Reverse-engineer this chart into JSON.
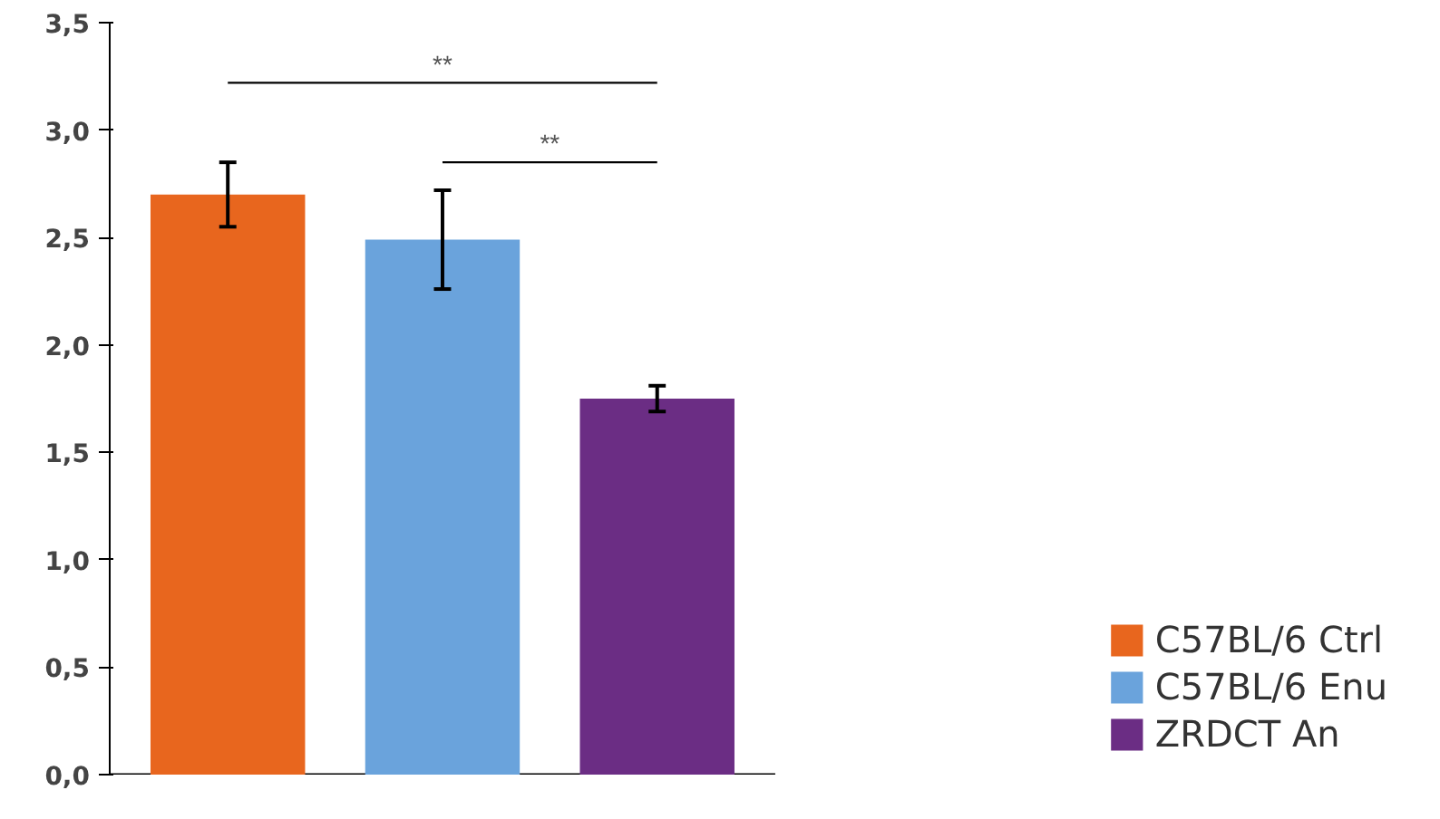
{
  "chart_data": {
    "type": "bar",
    "categories": [
      null,
      null,
      null
    ],
    "series": [
      {
        "name": "C57BL/6 Ctrl",
        "color": "#e8661e",
        "values": [
          2.7,
          null,
          null
        ],
        "errors": [
          0.15,
          null,
          null
        ]
      },
      {
        "name": "C57BL/6 Enu",
        "color": "#6aa3dc",
        "values": [
          null,
          2.49,
          null
        ],
        "errors": [
          null,
          0.23,
          null
        ]
      },
      {
        "name": "ZRDCT An",
        "color": "#6b2d84",
        "values": [
          null,
          null,
          1.75
        ],
        "errors": [
          null,
          null,
          0.06
        ]
      }
    ],
    "ylim": [
      0,
      3.5
    ],
    "yticks": [
      {
        "value": 0,
        "label": "0,0"
      },
      {
        "value": 0.5,
        "label": "0,5"
      },
      {
        "value": 1,
        "label": "1,0"
      },
      {
        "value": 1.5,
        "label": "1,5"
      },
      {
        "value": 2,
        "label": "2,0"
      },
      {
        "value": 2.5,
        "label": "2,5"
      },
      {
        "value": 3,
        "label": "3,0"
      },
      {
        "value": 3.5,
        "label": "3,5"
      }
    ],
    "annotations": [
      "**",
      "**"
    ],
    "grid": false,
    "legend": "bottom right"
  }
}
